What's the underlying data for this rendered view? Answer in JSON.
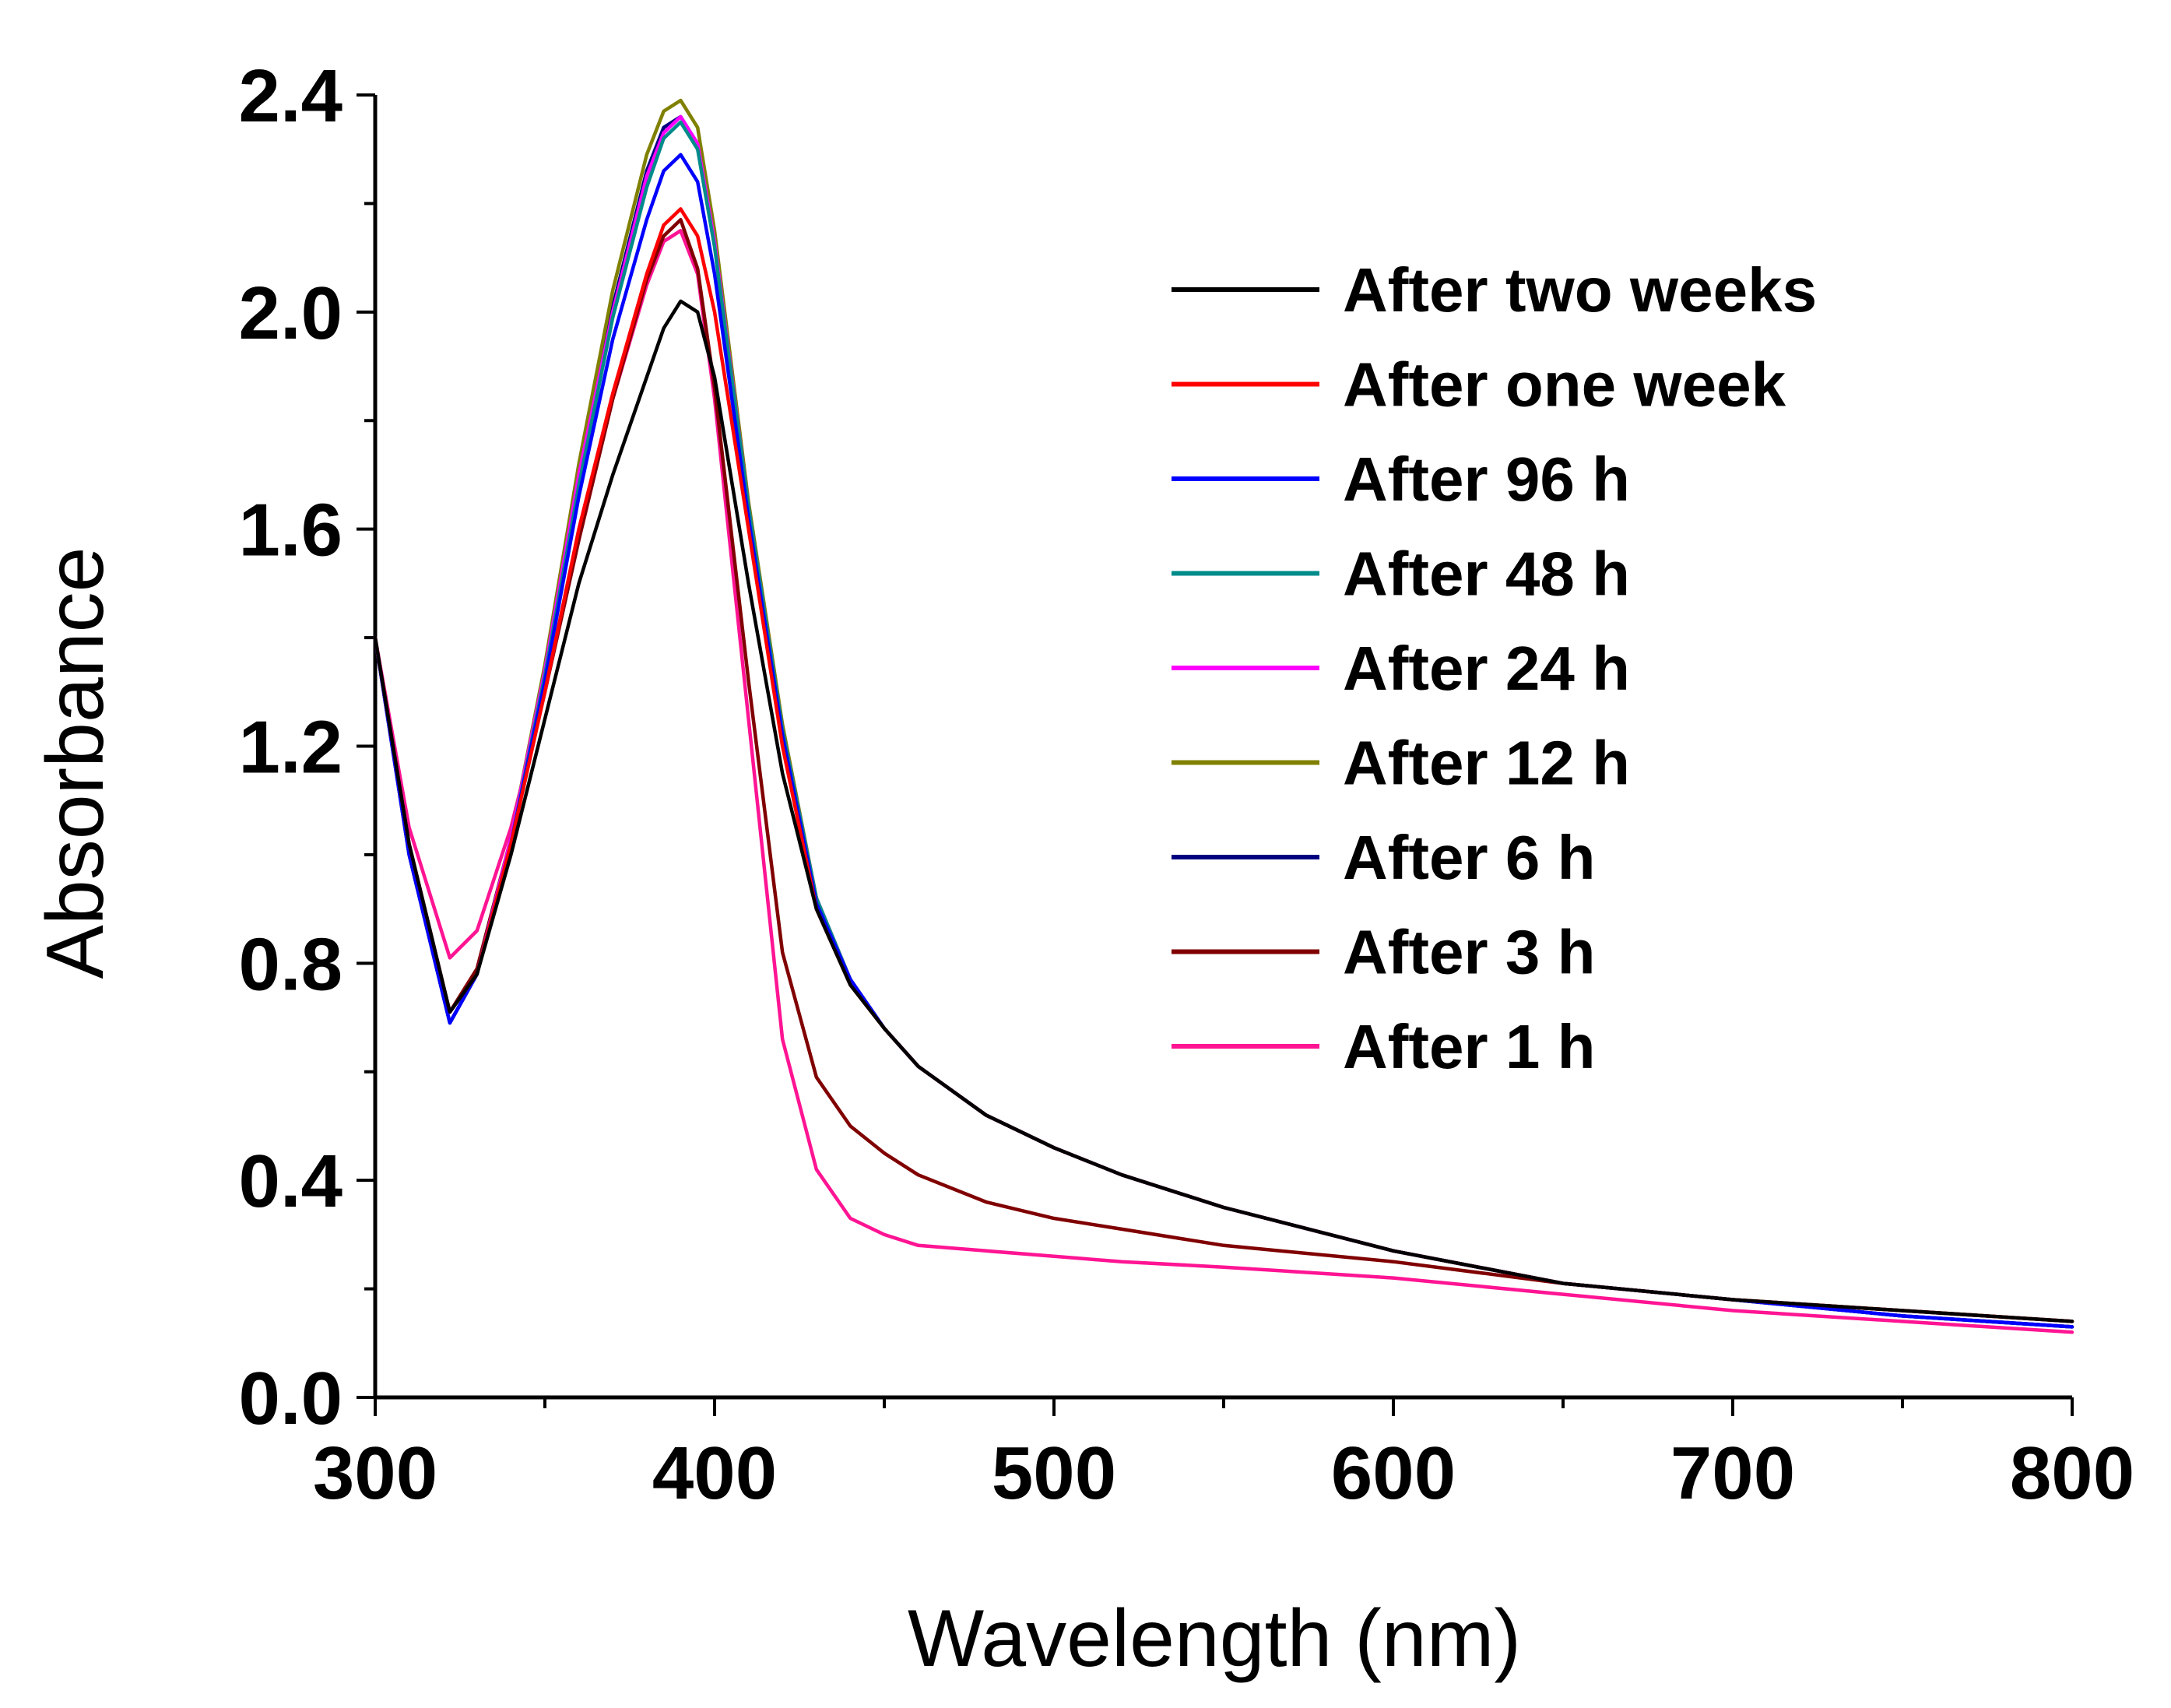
{
  "chart_data": {
    "type": "line",
    "title": "",
    "xlabel": "Wavelength (nm)",
    "ylabel": "Absorbance",
    "xlim": [
      300,
      800
    ],
    "ylim": [
      0.0,
      2.4
    ],
    "xticks": [
      300,
      400,
      500,
      600,
      700,
      800
    ],
    "xtick_labels": [
      "300",
      "400",
      "500",
      "600",
      "700",
      "800"
    ],
    "yticks": [
      0.0,
      0.4,
      0.8,
      1.2,
      1.6,
      2.0,
      2.4
    ],
    "ytick_labels": [
      "0.0",
      "0.4",
      "0.8",
      "1.2",
      "1.6",
      "2.0",
      "2.4"
    ],
    "grid": false,
    "legend_position": "top-right",
    "x": [
      300,
      310,
      322,
      330,
      340,
      350,
      360,
      370,
      380,
      385,
      390,
      395,
      400,
      410,
      420,
      430,
      440,
      450,
      460,
      480,
      500,
      520,
      550,
      600,
      650,
      700,
      750,
      800
    ],
    "series": [
      {
        "name": "After two weeks",
        "color": "#000000",
        "values": [
          1.4,
          1.02,
          0.71,
          0.78,
          1.0,
          1.25,
          1.5,
          1.7,
          1.88,
          1.97,
          2.02,
          2.0,
          1.88,
          1.5,
          1.15,
          0.9,
          0.76,
          0.68,
          0.61,
          0.52,
          0.46,
          0.41,
          0.35,
          0.27,
          0.21,
          0.18,
          0.16,
          0.14
        ]
      },
      {
        "name": "After one week",
        "color": "#ff0000",
        "values": [
          1.4,
          1.02,
          0.71,
          0.78,
          1.02,
          1.3,
          1.6,
          1.85,
          2.07,
          2.16,
          2.19,
          2.14,
          2.0,
          1.6,
          1.2,
          0.9,
          0.76,
          0.68,
          0.61,
          0.52,
          0.46,
          0.41,
          0.35,
          0.27,
          0.21,
          0.18,
          0.16,
          0.14
        ]
      },
      {
        "name": "After 96 h",
        "color": "#0000ff",
        "values": [
          1.4,
          1.0,
          0.69,
          0.78,
          1.02,
          1.32,
          1.66,
          1.95,
          2.17,
          2.26,
          2.29,
          2.24,
          2.07,
          1.62,
          1.22,
          0.91,
          0.77,
          0.68,
          0.61,
          0.52,
          0.46,
          0.41,
          0.35,
          0.27,
          0.21,
          0.18,
          0.15,
          0.13
        ]
      },
      {
        "name": "After 48 h",
        "color": "#008b8b",
        "values": [
          1.4,
          1.0,
          0.69,
          0.78,
          1.02,
          1.33,
          1.68,
          1.99,
          2.23,
          2.32,
          2.35,
          2.3,
          2.12,
          1.64,
          1.23,
          0.92,
          0.77,
          0.68,
          0.61,
          0.52,
          0.46,
          0.41,
          0.35,
          0.27,
          0.21,
          0.18,
          0.15,
          0.13
        ]
      },
      {
        "name": "After 24 h",
        "color": "#ff00ff",
        "values": [
          1.4,
          1.0,
          0.69,
          0.78,
          1.03,
          1.34,
          1.7,
          2.0,
          2.25,
          2.33,
          2.36,
          2.31,
          2.13,
          1.64,
          1.23,
          0.92,
          0.77,
          0.68,
          0.61,
          0.52,
          0.46,
          0.41,
          0.35,
          0.27,
          0.21,
          0.18,
          0.15,
          0.13
        ]
      },
      {
        "name": "After 12 h",
        "color": "#808000",
        "values": [
          1.4,
          1.0,
          0.69,
          0.78,
          1.03,
          1.35,
          1.72,
          2.04,
          2.29,
          2.37,
          2.39,
          2.34,
          2.15,
          1.65,
          1.24,
          0.92,
          0.77,
          0.68,
          0.61,
          0.52,
          0.46,
          0.41,
          0.35,
          0.27,
          0.21,
          0.18,
          0.15,
          0.13
        ]
      },
      {
        "name": "After 6 h",
        "color": "#000080",
        "values": [
          1.4,
          1.0,
          0.69,
          0.78,
          1.03,
          1.34,
          1.7,
          2.01,
          2.26,
          2.34,
          2.36,
          2.31,
          2.13,
          1.64,
          1.23,
          0.92,
          0.77,
          0.68,
          0.61,
          0.52,
          0.46,
          0.41,
          0.35,
          0.27,
          0.21,
          0.18,
          0.15,
          0.13
        ]
      },
      {
        "name": "After 3 h",
        "color": "#800000",
        "values": [
          1.4,
          1.01,
          0.71,
          0.79,
          1.03,
          1.3,
          1.58,
          1.84,
          2.06,
          2.14,
          2.17,
          2.08,
          1.86,
          1.32,
          0.82,
          0.59,
          0.5,
          0.45,
          0.41,
          0.36,
          0.33,
          0.31,
          0.28,
          0.25,
          0.21,
          0.18,
          0.16,
          0.14
        ]
      },
      {
        "name": "After 1 h",
        "color": "#ff1493",
        "values": [
          1.4,
          1.05,
          0.81,
          0.86,
          1.05,
          1.3,
          1.58,
          1.84,
          2.05,
          2.13,
          2.15,
          2.07,
          1.84,
          1.25,
          0.66,
          0.42,
          0.33,
          0.3,
          0.28,
          0.27,
          0.26,
          0.25,
          0.24,
          0.22,
          0.19,
          0.16,
          0.14,
          0.12
        ]
      }
    ]
  }
}
